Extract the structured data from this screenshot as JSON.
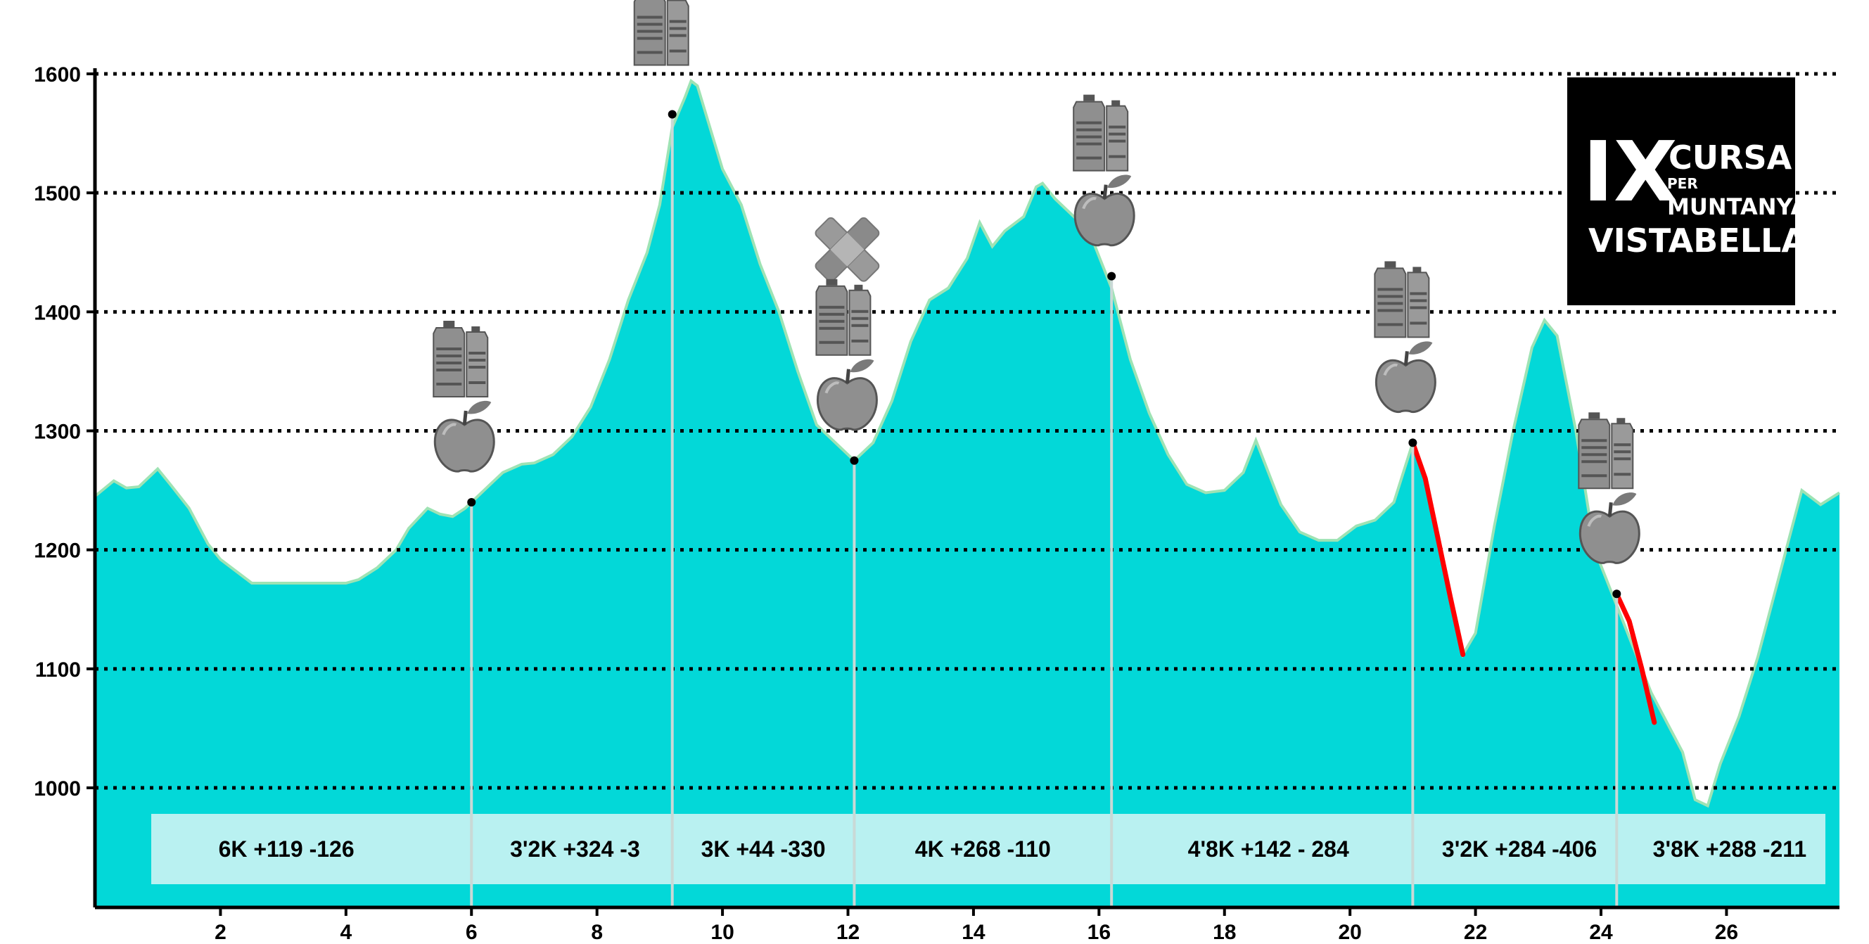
{
  "chart_data": {
    "type": "area",
    "title": "",
    "xlabel": "",
    "ylabel": "",
    "xlim": [
      0,
      27.8
    ],
    "ylim": [
      900,
      1600
    ],
    "x_ticks": [
      2,
      4,
      6,
      8,
      10,
      12,
      14,
      16,
      18,
      20,
      22,
      24,
      26
    ],
    "y_ticks": [
      1000,
      1100,
      1200,
      1300,
      1400,
      1500,
      1600
    ],
    "grid": "horizontal-dotted",
    "fill_color": "#03d8d8",
    "line_color": "#9ee3b4",
    "highlight_color": "#ff0000",
    "profile": {
      "x": [
        0,
        0.3,
        0.5,
        0.7,
        1.0,
        1.2,
        1.5,
        1.8,
        2.0,
        2.5,
        3.0,
        3.5,
        4.0,
        4.2,
        4.5,
        4.8,
        5.0,
        5.3,
        5.5,
        5.7,
        5.9,
        6.0,
        6.3,
        6.5,
        6.8,
        7.0,
        7.3,
        7.6,
        7.9,
        8.2,
        8.5,
        8.8,
        9.0,
        9.2,
        9.4,
        9.5,
        9.6,
        9.8,
        10.0,
        10.3,
        10.6,
        10.9,
        11.2,
        11.5,
        11.8,
        12.1,
        12.4,
        12.7,
        13.0,
        13.3,
        13.6,
        13.9,
        14.1,
        14.3,
        14.5,
        14.8,
        15.0,
        15.1,
        15.3,
        15.5,
        15.7,
        15.9,
        16.2,
        16.5,
        16.8,
        17.1,
        17.4,
        17.7,
        18.0,
        18.3,
        18.5,
        18.7,
        18.9,
        19.2,
        19.5,
        19.8,
        20.1,
        20.4,
        20.7,
        21.0,
        21.2,
        21.4,
        21.6,
        21.8,
        22.0,
        22.3,
        22.6,
        22.9,
        23.1,
        23.3,
        23.6,
        23.9,
        24.2,
        24.5,
        24.8,
        25.1,
        25.3,
        25.5,
        25.7,
        25.9,
        26.2,
        26.5,
        26.8,
        27.0,
        27.2,
        27.5,
        27.8
      ],
      "y": [
        1245,
        1258,
        1252,
        1253,
        1268,
        1255,
        1235,
        1205,
        1192,
        1172,
        1172,
        1172,
        1172,
        1175,
        1185,
        1200,
        1218,
        1235,
        1230,
        1228,
        1235,
        1240,
        1255,
        1265,
        1272,
        1273,
        1280,
        1295,
        1320,
        1360,
        1410,
        1450,
        1490,
        1555,
        1580,
        1594,
        1590,
        1555,
        1520,
        1490,
        1440,
        1400,
        1350,
        1305,
        1290,
        1275,
        1290,
        1325,
        1375,
        1410,
        1420,
        1445,
        1475,
        1455,
        1468,
        1480,
        1505,
        1508,
        1495,
        1485,
        1475,
        1460,
        1420,
        1360,
        1315,
        1280,
        1255,
        1248,
        1250,
        1265,
        1292,
        1265,
        1238,
        1215,
        1208,
        1208,
        1220,
        1225,
        1240,
        1290,
        1260,
        1210,
        1160,
        1112,
        1130,
        1220,
        1300,
        1370,
        1393,
        1380,
        1300,
        1200,
        1160,
        1120,
        1080,
        1050,
        1030,
        990,
        985,
        1020,
        1060,
        1110,
        1170,
        1210,
        1250,
        1238,
        1248
      ]
    },
    "steep_descents": [
      {
        "x": [
          21.0,
          21.2,
          21.4,
          21.6,
          21.8
        ],
        "y": [
          1290,
          1260,
          1210,
          1160,
          1112
        ]
      },
      {
        "x": [
          24.25,
          24.45,
          24.65,
          24.85
        ],
        "y": [
          1163,
          1140,
          1100,
          1055
        ]
      }
    ],
    "checkpoints": [
      {
        "x": 6.0,
        "y": 1240,
        "icons": [
          "water-bottles",
          "apple"
        ]
      },
      {
        "x": 9.2,
        "y": 1566,
        "icons": [
          "water-bottles"
        ]
      },
      {
        "x": 12.1,
        "y": 1275,
        "icons": [
          "first-aid",
          "water-bottles",
          "apple"
        ]
      },
      {
        "x": 16.2,
        "y": 1430,
        "icons": [
          "water-bottles",
          "apple"
        ]
      },
      {
        "x": 21.0,
        "y": 1290,
        "icons": [
          "water-bottles",
          "apple"
        ]
      },
      {
        "x": 24.25,
        "y": 1163,
        "icons": [
          "water-bottles",
          "apple"
        ]
      }
    ],
    "segments": [
      {
        "label": "6K +119 -126",
        "x": 3.05
      },
      {
        "label": "3'2K +324 -3",
        "x": 7.65
      },
      {
        "label": "3K +44 -330",
        "x": 10.65
      },
      {
        "label": "4K +268 -110",
        "x": 14.15
      },
      {
        "label": "4'8K +142 - 284",
        "x": 18.7
      },
      {
        "label": "3'2K +284 -406",
        "x": 22.7
      },
      {
        "label": "3'8K +288 -211",
        "x": 26.05
      }
    ]
  },
  "logo": {
    "numeral": "IX",
    "line1": "CURSA",
    "line2": "PER",
    "line3": "MUNTANYA",
    "line4": "VISTABELLA"
  }
}
